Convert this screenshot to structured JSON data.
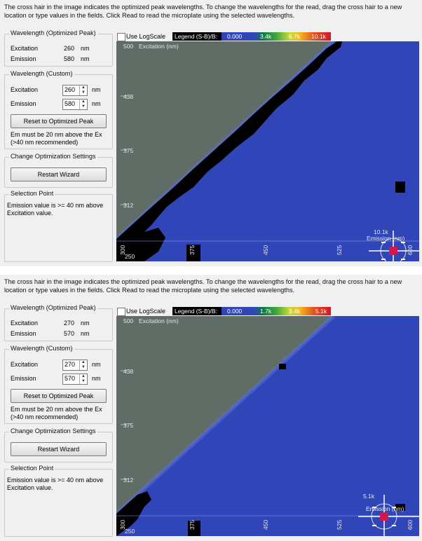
{
  "panels": [
    {
      "intro": "The cross hair in the image indicates the optimized peak wavelengths. To change the wavelengths for the read, drag the cross hair to a new location or type values in the fields. Click Read to read the microplate using the selected wavelengths.",
      "optimized": {
        "title": "Wavelength (Optimized Peak)",
        "excitation_label": "Excitation",
        "excitation_value": "260",
        "emission_label": "Emission",
        "emission_value": "580",
        "unit": "nm"
      },
      "custom": {
        "title": "Wavelength (Custom)",
        "excitation_label": "Excitation",
        "excitation_value": "260",
        "emission_label": "Emission",
        "emission_value": "580",
        "unit": "nm",
        "reset_label": "Reset to Optimized Peak",
        "note": "Em must be 20 nm above the Ex (>40 nm recommended)"
      },
      "settings": {
        "title": "Change Optimization Settings",
        "restart_label": "Restart Wizard"
      },
      "selection": {
        "title": "Selection Point",
        "text": "Emission value is >= 40 nm above Excitation value."
      },
      "use_log_label": "Use LogScale",
      "legend": {
        "title": "Legend (S-B)/B:",
        "ticks": [
          "0.000",
          "3.4k",
          "6.7k",
          "10.1k"
        ]
      },
      "plot": {
        "y_axis_label": "Excitation (nm)",
        "y_ticks": [
          "500",
          "438",
          "375",
          "312",
          "250"
        ],
        "x_ticks": [
          "300",
          "375",
          "450",
          "525",
          "600"
        ],
        "cross_value": "10.1k",
        "cross_label": "Emission (nm)"
      }
    },
    {
      "intro": "The cross hair in the image indicates the optimized peak wavelengths. To change the wavelengths for the read, drag the cross hair to a new location or type values in the fields. Click Read to read the microplate using the selected wavelengths.",
      "optimized": {
        "title": "Wavelength (Optimized Peak)",
        "excitation_label": "Excitation",
        "excitation_value": "270",
        "emission_label": "Emission",
        "emission_value": "570",
        "unit": "nm"
      },
      "custom": {
        "title": "Wavelength (Custom)",
        "excitation_label": "Excitation",
        "excitation_value": "270",
        "emission_label": "Emission",
        "emission_value": "570",
        "unit": "nm",
        "reset_label": "Reset to Optimized Peak",
        "note": "Em must be 20 nm above the Ex (>40 nm recommended)"
      },
      "settings": {
        "title": "Change Optimization Settings",
        "restart_label": "Restart Wizard"
      },
      "selection": {
        "title": "Selection Point",
        "text": "Emission value is >= 40 nm above Excitation value."
      },
      "use_log_label": "Use LogScale",
      "legend": {
        "title": "Legend (S-B)/B:",
        "ticks": [
          "0.000",
          "1.7k",
          "3.4k",
          "5.1k"
        ]
      },
      "plot": {
        "y_axis_label": "Excitation (nm)",
        "y_ticks": [
          "500",
          "438",
          "375",
          "312",
          "250"
        ],
        "x_ticks": [
          "300",
          "375",
          "450",
          "525",
          "600"
        ],
        "cross_value": "5.1k",
        "cross_label": "Emission (nm)"
      }
    }
  ],
  "colors": {
    "background": "#f0f0f0",
    "plot_blue": "#2f45b8",
    "masked_gray": "#5f6d66",
    "black_region": "#000000",
    "cross_red": "#d0184f"
  }
}
